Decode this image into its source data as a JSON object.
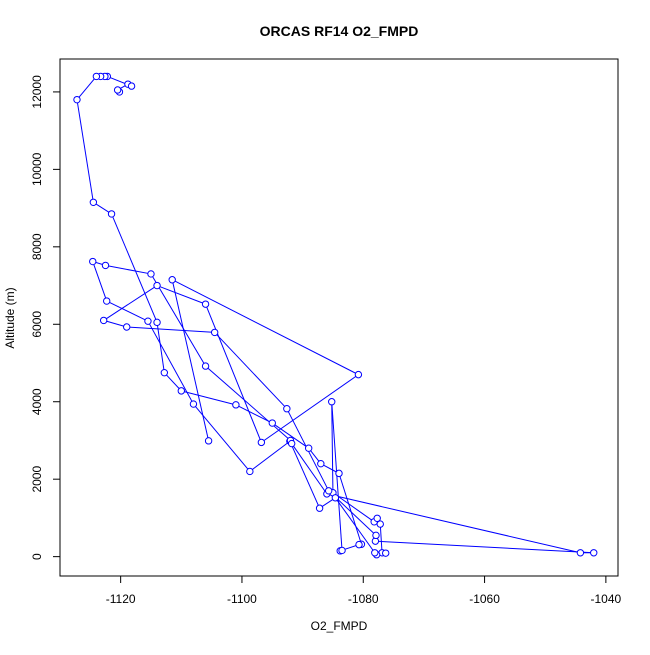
{
  "chart_data": {
    "type": "line",
    "title": "ORCAS RF14 O2_FMPD",
    "xlabel": "O2_FMPD",
    "ylabel": "Altitude (m)",
    "xlim": [
      -1130,
      -1038
    ],
    "ylim": [
      -500,
      12850
    ],
    "x_ticks": [
      -1120,
      -1100,
      -1080,
      -1060,
      -1040
    ],
    "y_ticks": [
      0,
      2000,
      4000,
      6000,
      8000,
      10000,
      12000
    ],
    "grid": false,
    "legend": "none",
    "colors": {
      "series": "#0000ff",
      "axis": "#000000",
      "background": "#ffffff"
    },
    "marker": "open-circle",
    "series": [
      {
        "x": [
          -1120.2,
          -1120.5,
          -1118.8,
          -1118.2,
          -1122.2,
          -1122.6,
          -1123.3,
          -1124.0,
          -1127.2,
          -1124.5,
          -1121.5,
          -1114.0,
          -1112.8,
          -1110.0,
          -1101.0,
          -1095.0,
          -1089.0,
          -1087.0,
          -1084.0,
          -1080.3,
          -1080.7,
          -1083.8,
          -1083.5,
          -1085.2,
          -1085.0,
          -1078.2,
          -1077.7,
          -1077.2,
          -1076.9,
          -1076.3,
          -1077.8,
          -1078.1,
          -1084.6,
          -1087.2,
          -1092.1,
          -1098.7,
          -1108.0,
          -1115.5,
          -1122.3,
          -1124.6,
          -1122.5,
          -1115.0,
          -1106.0,
          -1092.0,
          -1091.8,
          -1086.0,
          -1044.2,
          -1042.0,
          -1078.0,
          -1077.9,
          -1085.7,
          -1092.6,
          -1104.5,
          -1119.0,
          -1122.8,
          -1114.0,
          -1106.0,
          -1096.8,
          -1080.8,
          -1111.5,
          -1105.5
        ],
        "y": [
          12000,
          12050,
          12200,
          12150,
          12400,
          12400,
          12400,
          12400,
          11800,
          9150,
          8850,
          6050,
          4750,
          4280,
          3920,
          3450,
          2800,
          2400,
          2150,
          320,
          310,
          150,
          160,
          4000,
          1650,
          900,
          990,
          840,
          100,
          90,
          50,
          100,
          1520,
          1250,
          2980,
          2200,
          3940,
          6080,
          6600,
          7620,
          7520,
          7300,
          4920,
          3000,
          2920,
          1620,
          100,
          100,
          400,
          550,
          1700,
          3820,
          5790,
          5930,
          6100,
          7000,
          6520,
          2950,
          4700,
          7150,
          2990
        ]
      }
    ]
  }
}
